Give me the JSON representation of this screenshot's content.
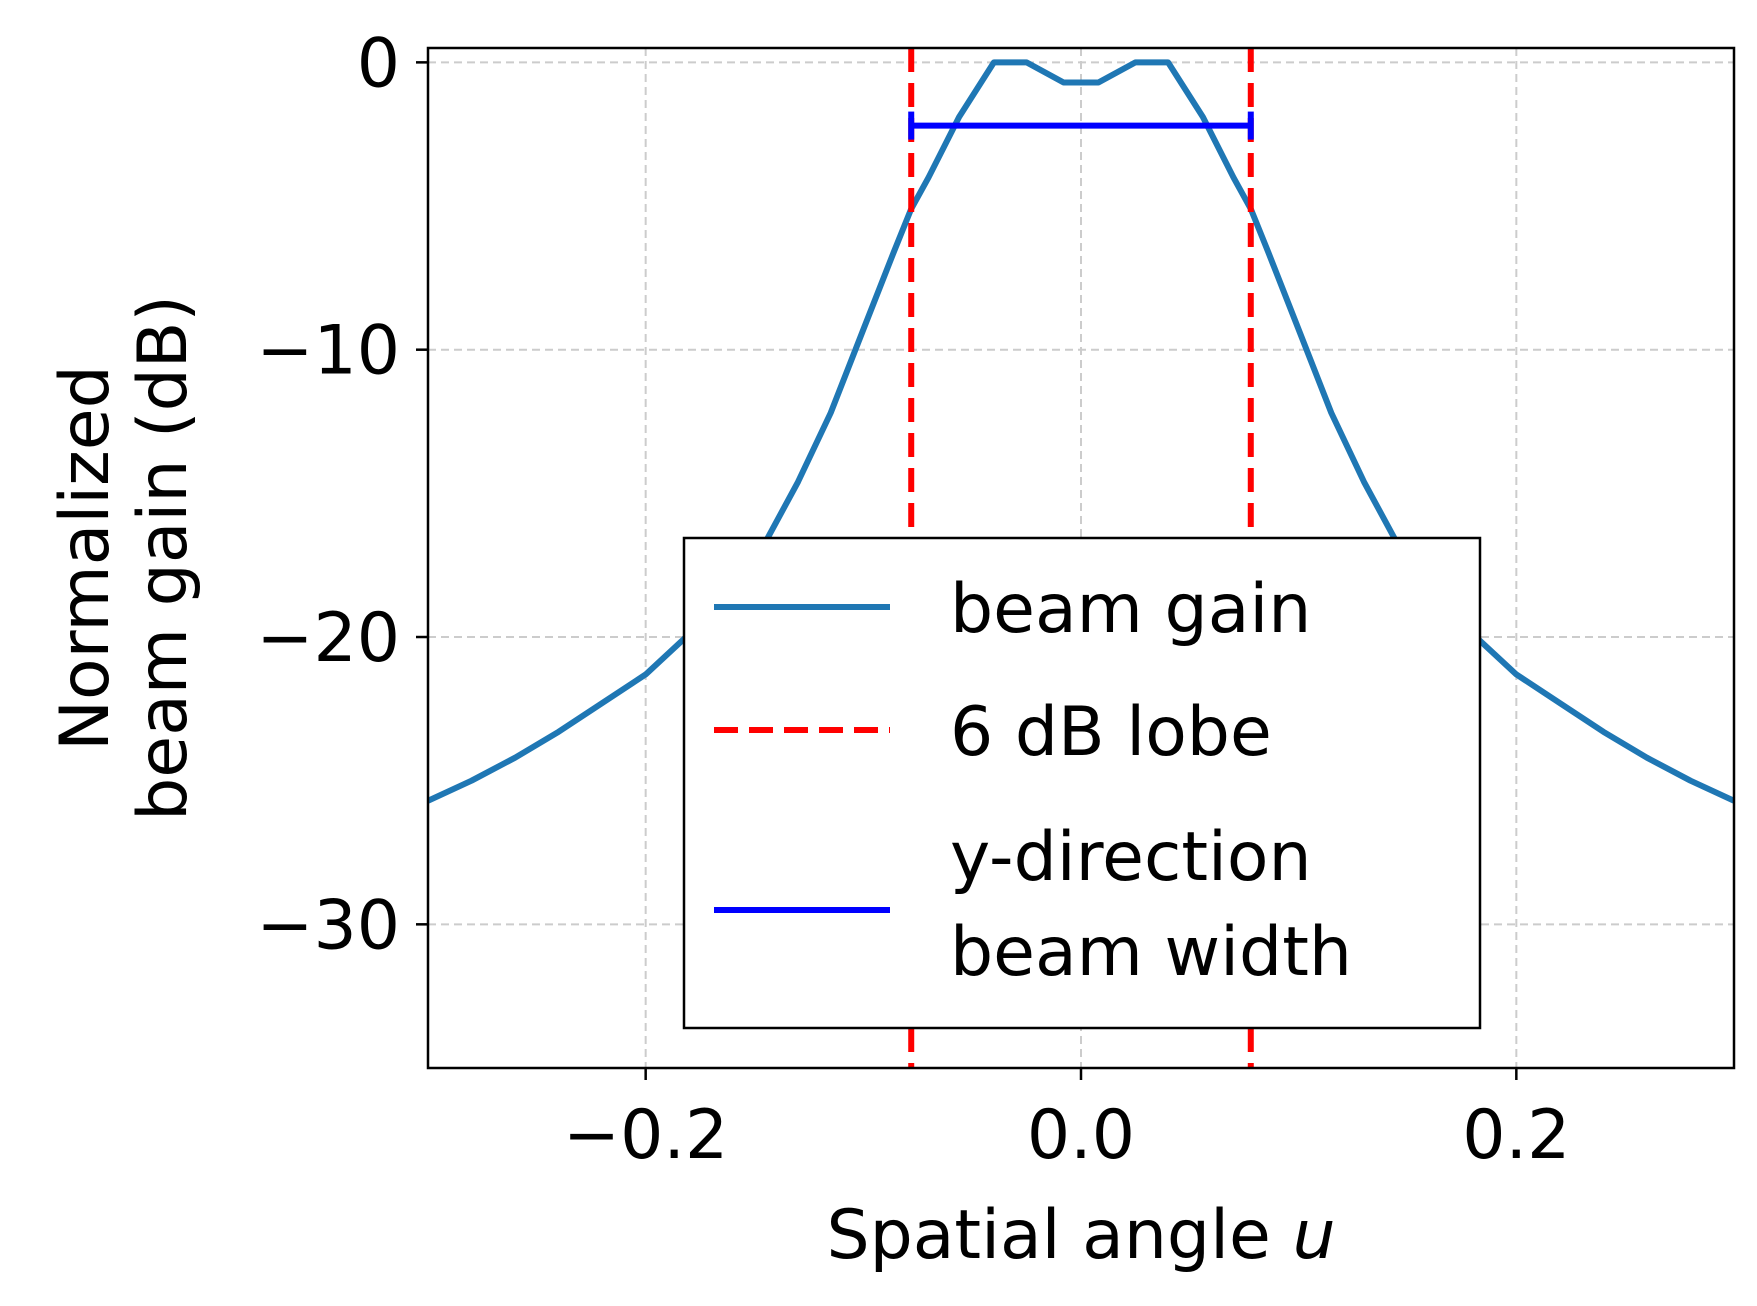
{
  "chart_data": {
    "type": "line",
    "title": "",
    "xlabel": "Spatial angle",
    "xlabel_var": "u",
    "ylabel_lines": [
      "Normalized",
      "beam gain (dB)"
    ],
    "xlim": [
      -0.3,
      0.3
    ],
    "ylim": [
      -35,
      0.5
    ],
    "xticks": [
      -0.2,
      0.0,
      0.2
    ],
    "xtick_labels": [
      "−0.2",
      "0.0",
      "0.2"
    ],
    "yticks": [
      0,
      -10,
      -20,
      -30
    ],
    "ytick_labels": [
      "0",
      "−10",
      "−20",
      "−30"
    ],
    "grid": true,
    "legend_position": "lower center",
    "series": [
      {
        "name": "beam gain",
        "style": "solid",
        "color": "#1f77b4",
        "x": [
          -0.3,
          -0.28,
          -0.26,
          -0.24,
          -0.22,
          -0.2,
          -0.18,
          -0.16,
          -0.145,
          -0.13,
          -0.115,
          -0.1,
          -0.086,
          -0.078,
          -0.07,
          -0.056,
          -0.04,
          -0.025,
          -0.008,
          0.008,
          0.025,
          0.04,
          0.056,
          0.07,
          0.078,
          0.086,
          0.1,
          0.115,
          0.13,
          0.145,
          0.16,
          0.18,
          0.2,
          0.22,
          0.24,
          0.26,
          0.28,
          0.3
        ],
        "y": [
          -25.7,
          -25.0,
          -24.2,
          -23.3,
          -22.3,
          -21.3,
          -19.9,
          -18.2,
          -16.7,
          -14.6,
          -12.2,
          -9.3,
          -6.6,
          -5.1,
          -4.0,
          -1.9,
          0.0,
          0.0,
          -0.7,
          -0.7,
          0.0,
          0.0,
          -1.9,
          -4.0,
          -5.1,
          -6.6,
          -9.3,
          -12.2,
          -14.6,
          -16.7,
          -18.2,
          -19.9,
          -21.3,
          -22.3,
          -23.3,
          -24.2,
          -25.0,
          -25.7
        ]
      },
      {
        "name": "6 dB lobe",
        "style": "dashed",
        "color": "#ff0000",
        "x_positions": [
          -0.078,
          0.078
        ]
      },
      {
        "name": "y-direction beam width",
        "name_lines": [
          "y-direction",
          "beam width"
        ],
        "style": "errorbar",
        "color": "#0000ff",
        "x_range": [
          -0.078,
          0.078
        ],
        "y": -2.2
      }
    ]
  }
}
